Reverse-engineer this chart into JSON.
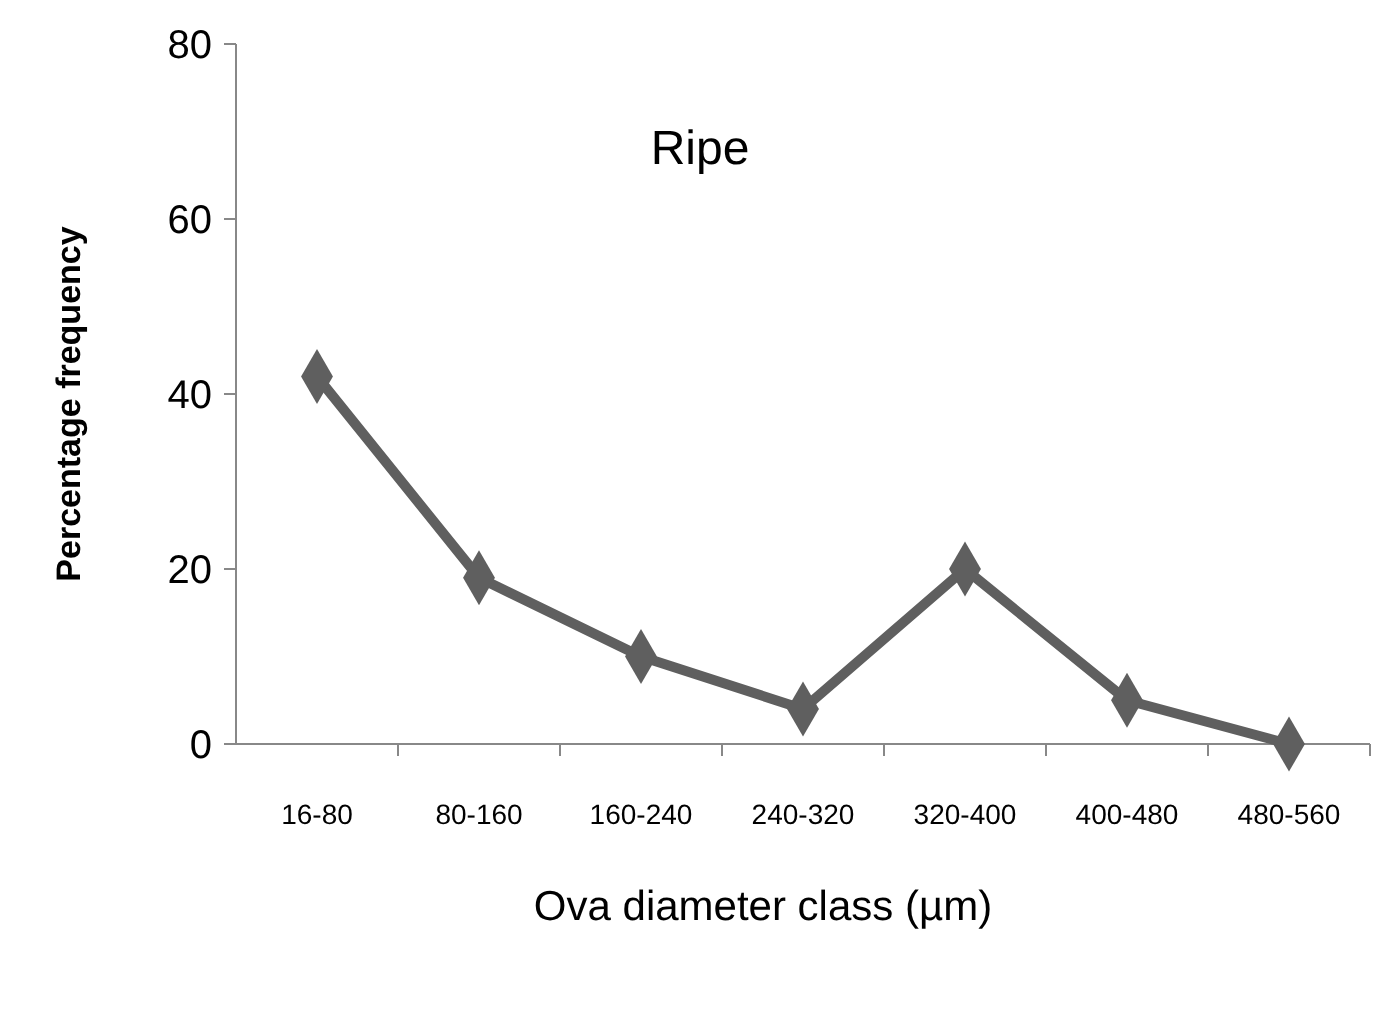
{
  "chart_data": {
    "type": "line",
    "title": "Ripe",
    "xlabel": "Ova diameter class (µm)",
    "ylabel": "Percentage frequency",
    "categories": [
      "16-80",
      "80-160",
      "160-240",
      "240-320",
      "320-400",
      "400-480",
      "480-560"
    ],
    "series": [
      {
        "color": "#5f5f5f",
        "values": [
          42,
          19,
          10,
          4,
          20,
          5,
          0
        ]
      }
    ],
    "ylim": [
      0,
      80
    ],
    "yticks": [
      0,
      20,
      40,
      60,
      80
    ],
    "marker": "diamond",
    "line_style": "solid"
  }
}
